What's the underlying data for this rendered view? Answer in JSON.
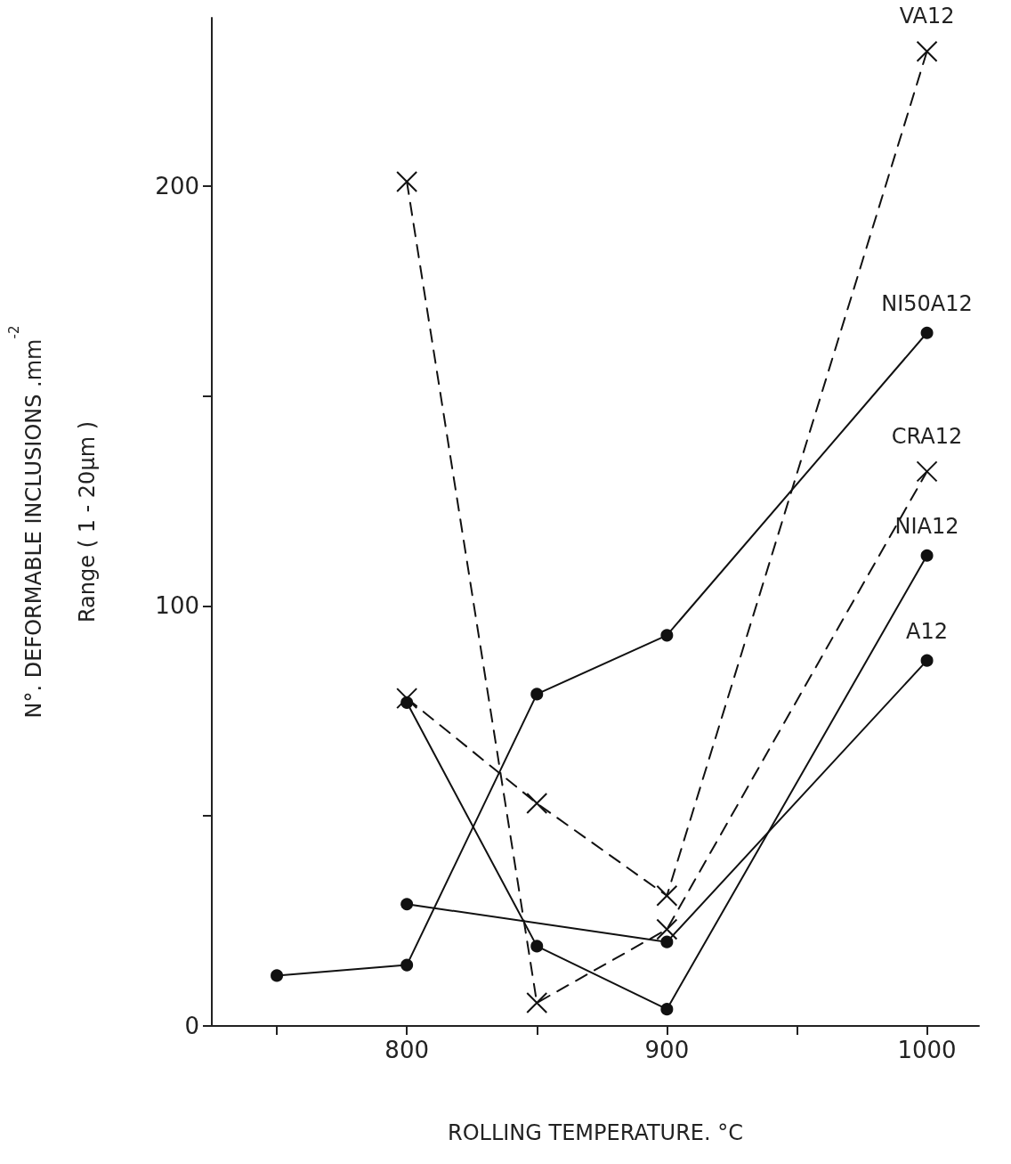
{
  "chart_data": {
    "type": "line",
    "xlabel": "ROLLING TEMPERATURE. °C",
    "ylabel": "N°. DEFORMABLE INCLUSIONS .mm$^{-2}$\nRange ( 1 - 20µm )",
    "xlim": [
      725,
      1020
    ],
    "xticks": [
      {
        "value": 750,
        "label": null
      },
      800,
      {
        "value": 850,
        "label": null
      },
      900,
      {
        "value": 950,
        "label": null
      },
      1000
    ],
    "ylim": [
      0,
      240
    ],
    "yticks": [
      0,
      {
        "value": 50,
        "label": null
      },
      100,
      {
        "value": 150,
        "label": null
      },
      200
    ],
    "grid": false,
    "legend": false,
    "series": [
      {
        "name": "VA12",
        "color": "#111111",
        "marker": "cross",
        "line_style": "dashed",
        "x": [
          800,
          850,
          900,
          1000
        ],
        "values": [
          78,
          53,
          31,
          232
        ]
      },
      {
        "name": "NI50A12",
        "color": "#111111",
        "marker": "circle",
        "line_style": "solid",
        "x": [
          750,
          800,
          850,
          900,
          1000
        ],
        "values": [
          12,
          14.5,
          79,
          93,
          165
        ]
      },
      {
        "name": "CRA12",
        "color": "#111111",
        "marker": "cross",
        "line_style": "dashed",
        "x": [
          800,
          850,
          900,
          1000
        ],
        "values": [
          201,
          5.5,
          23,
          132
        ]
      },
      {
        "name": "NIA12",
        "color": "#111111",
        "marker": "circle",
        "line_style": "solid",
        "x": [
          800,
          850,
          900,
          1000
        ],
        "values": [
          77,
          19,
          4,
          112
        ]
      },
      {
        "name": "A12",
        "color": "#111111",
        "marker": "circle",
        "line_style": "solid",
        "x": [
          800,
          900,
          1000
        ],
        "values": [
          29,
          20,
          87
        ]
      }
    ]
  }
}
